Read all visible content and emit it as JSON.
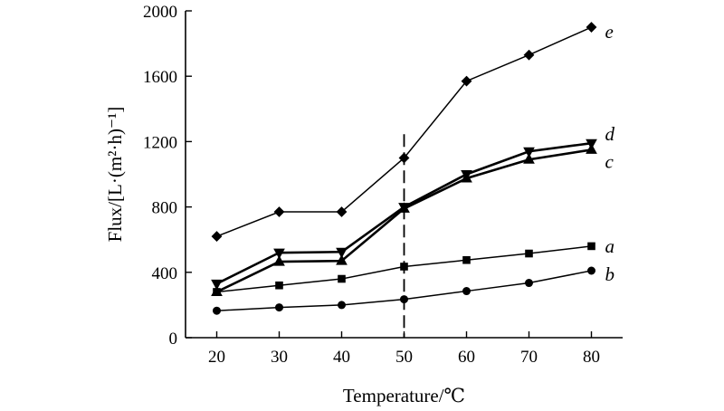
{
  "chart_data": {
    "type": "line",
    "title": "",
    "xlabel": "Temperature/℃",
    "ylabel": "Flux/[L·(m²·h)⁻¹]",
    "x": [
      20,
      30,
      40,
      50,
      60,
      70,
      80
    ],
    "xlim": [
      15,
      85
    ],
    "ylim": [
      0,
      2000
    ],
    "xticks": [
      20,
      30,
      40,
      50,
      60,
      70,
      80
    ],
    "yticks": [
      0,
      400,
      800,
      1200,
      1600,
      2000
    ],
    "grid": false,
    "reference_line_x": 50,
    "series": [
      {
        "name": "e",
        "marker": "diamond",
        "bold": false,
        "values": [
          620,
          770,
          770,
          1100,
          1570,
          1730,
          1900
        ]
      },
      {
        "name": "d",
        "marker": "triangle-down",
        "bold": true,
        "values": [
          330,
          520,
          525,
          800,
          1000,
          1140,
          1190
        ]
      },
      {
        "name": "c",
        "marker": "triangle-up",
        "bold": true,
        "values": [
          280,
          465,
          470,
          790,
          975,
          1090,
          1150
        ]
      },
      {
        "name": "a",
        "marker": "square",
        "bold": false,
        "values": [
          280,
          320,
          360,
          435,
          475,
          515,
          560
        ]
      },
      {
        "name": "b",
        "marker": "circle",
        "bold": false,
        "values": [
          165,
          185,
          200,
          235,
          285,
          335,
          410
        ]
      }
    ]
  }
}
